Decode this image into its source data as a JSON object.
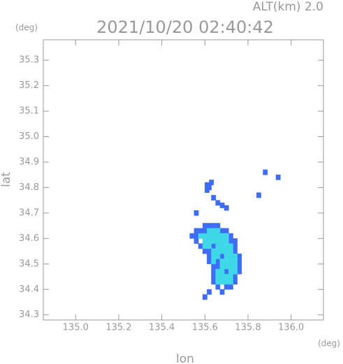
{
  "chart_data": {
    "type": "scatter",
    "title": "2021/10/20 02:40:42",
    "subtitle": "ALT(km) 2.0",
    "y_unit": "(deg)",
    "x_unit": "(deg)",
    "xlabel": "lon",
    "ylabel": "lat",
    "xlim": [
      134.85,
      136.15
    ],
    "ylim": [
      34.28,
      35.38
    ],
    "xticks": [
      {
        "value": 135.0,
        "label": "135.0"
      },
      {
        "value": 135.2,
        "label": "135.2"
      },
      {
        "value": 135.4,
        "label": "135.4"
      },
      {
        "value": 135.6,
        "label": "135.6"
      },
      {
        "value": 135.8,
        "label": "135.8"
      },
      {
        "value": 136.0,
        "label": "136.0"
      }
    ],
    "yticks": [
      {
        "value": 34.3,
        "label": "34.3"
      },
      34.4,
      34.5,
      34.6,
      34.7,
      34.8,
      34.9,
      {
        "value": 35.0,
        "label": "35.0"
      },
      35.1,
      35.2,
      35.3
    ],
    "series": [
      {
        "color": "#3f6cf5",
        "x": [
          135.61,
          135.62,
          135.61,
          135.63,
          135.66,
          135.68,
          135.7,
          135.64,
          135.88,
          135.94,
          135.85,
          135.56,
          135.6,
          135.62,
          135.64,
          135.66,
          135.56,
          135.58,
          135.6,
          135.68,
          135.7,
          135.54,
          135.56,
          135.72,
          135.56,
          135.72,
          135.74,
          135.58,
          135.74,
          135.6,
          135.74,
          135.62,
          135.76,
          135.62,
          135.76,
          135.64,
          135.66,
          135.76,
          135.64,
          135.76,
          135.64,
          135.74,
          135.64,
          135.74,
          135.66,
          135.7,
          135.72,
          135.62,
          135.68,
          135.6,
          135.64,
          135.62,
          135.68,
          135.66,
          135.7
        ],
        "y": [
          34.81,
          34.8,
          34.79,
          34.82,
          34.74,
          34.73,
          34.72,
          34.76,
          34.86,
          34.84,
          34.77,
          34.7,
          34.65,
          34.65,
          34.65,
          34.65,
          34.63,
          34.63,
          34.63,
          34.63,
          34.63,
          34.61,
          34.61,
          34.61,
          34.59,
          34.59,
          34.59,
          34.57,
          34.57,
          34.55,
          34.55,
          34.53,
          34.53,
          34.51,
          34.51,
          34.49,
          34.49,
          34.49,
          34.47,
          34.47,
          34.45,
          34.45,
          34.43,
          34.43,
          34.41,
          34.41,
          34.41,
          34.39,
          34.39,
          34.37,
          34.57,
          34.55,
          34.53,
          34.51,
          34.47
        ]
      },
      {
        "color": "#3fd8e8",
        "x": [
          135.62,
          135.64,
          135.66,
          135.58,
          135.6,
          135.62,
          135.64,
          135.66,
          135.68,
          135.7,
          135.6,
          135.62,
          135.64,
          135.66,
          135.68,
          135.7,
          135.6,
          135.62,
          135.66,
          135.68,
          135.7,
          135.72,
          135.64,
          135.66,
          135.68,
          135.7,
          135.72,
          135.64,
          135.66,
          135.7,
          135.72,
          135.74,
          135.64,
          135.68,
          135.7,
          135.72,
          135.74,
          135.68,
          135.7,
          135.72,
          135.74,
          135.66,
          135.68,
          135.72,
          135.74,
          135.66,
          135.68,
          135.7,
          135.72,
          135.66,
          135.68,
          135.7,
          135.72
        ],
        "y": [
          34.63,
          34.63,
          34.63,
          34.61,
          34.61,
          34.61,
          34.61,
          34.61,
          34.61,
          34.61,
          34.59,
          34.59,
          34.59,
          34.59,
          34.59,
          34.59,
          34.57,
          34.57,
          34.57,
          34.57,
          34.57,
          34.57,
          34.55,
          34.55,
          34.55,
          34.55,
          34.55,
          34.53,
          34.53,
          34.53,
          34.53,
          34.53,
          34.51,
          34.51,
          34.51,
          34.51,
          34.51,
          34.49,
          34.49,
          34.49,
          34.49,
          34.47,
          34.47,
          34.47,
          34.47,
          34.45,
          34.45,
          34.45,
          34.45,
          34.43,
          34.43,
          34.43,
          34.43
        ]
      }
    ]
  }
}
